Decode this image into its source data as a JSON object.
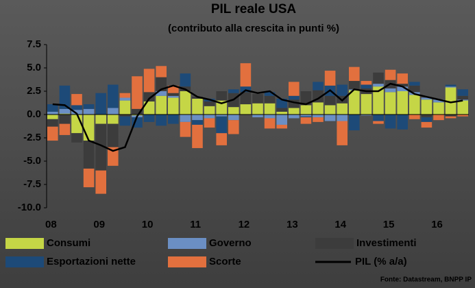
{
  "chart_data": {
    "type": "bar",
    "stacked": true,
    "title": "PIL reale USA",
    "subtitle": "(contributo alla crescita in punti %)",
    "categories": [
      "08",
      null,
      null,
      null,
      "09",
      null,
      null,
      null,
      "10",
      null,
      null,
      null,
      "11",
      null,
      null,
      null,
      "12",
      null,
      null,
      null,
      "13",
      null,
      null,
      null,
      "14",
      null,
      null,
      null,
      "15",
      null,
      null,
      null,
      "16",
      null,
      null
    ],
    "series": [
      {
        "name": "Consumi",
        "color": "#c5d646",
        "values": [
          -0.5,
          0.1,
          -2.0,
          -2.8,
          -1.0,
          -1.0,
          1.5,
          -0.1,
          1.4,
          2.0,
          1.8,
          2.5,
          1.7,
          0.9,
          1.5,
          0.8,
          1.1,
          1.2,
          1.2,
          0.3,
          0.7,
          1.0,
          1.3,
          1.0,
          1.2,
          2.6,
          2.2,
          3.0,
          2.4,
          2.5,
          2.1,
          1.6,
          1.3,
          2.9,
          1.5
        ]
      },
      {
        "name": "Governo",
        "color": "#6b8fc4",
        "values": [
          0.3,
          0.5,
          0.5,
          0.6,
          0.0,
          0.7,
          0.3,
          -0.2,
          0.0,
          0.5,
          0.2,
          -0.8,
          -0.6,
          -0.4,
          -0.2,
          -0.6,
          0.0,
          -0.3,
          -0.4,
          -1.1,
          -0.4,
          -0.2,
          -0.3,
          -0.7,
          -0.7,
          0.1,
          -0.1,
          0.3,
          0.4,
          0.5,
          0.3,
          0.2,
          0.3,
          0.1,
          0.1
        ]
      },
      {
        "name": "Investimenti",
        "color": "#3c3c3c",
        "values": [
          -0.8,
          -1.0,
          -1.0,
          -3.0,
          -5.0,
          -2.5,
          -0.2,
          0.6,
          1.0,
          1.5,
          0.3,
          0.5,
          0.2,
          0.5,
          1.0,
          1.5,
          1.3,
          1.0,
          0.8,
          0.4,
          0.9,
          1.5,
          1.3,
          1.0,
          0.8,
          0.9,
          0.6,
          1.2,
          0.9,
          0.3,
          0.7,
          -0.3,
          0.0,
          -0.2,
          0.4
        ]
      },
      {
        "name": "Esportazioni nette",
        "color": "#1d4a78",
        "values": [
          0.8,
          2.5,
          0.5,
          0.5,
          2.3,
          2.5,
          -1.0,
          -1.1,
          -0.8,
          -1.2,
          -1.0,
          1.4,
          -0.5,
          0.3,
          -1.8,
          0.4,
          0.6,
          0.0,
          0.4,
          1.0,
          0.4,
          -0.1,
          0.9,
          1.1,
          1.2,
          -1.7,
          0.4,
          -0.7,
          -1.5,
          -1.6,
          0.4,
          -0.5,
          0.0,
          0.2,
          0.7
        ]
      },
      {
        "name": "Scorte",
        "color": "#e2703e",
        "values": [
          -1.5,
          -1.2,
          1.2,
          -2.0,
          -2.5,
          -2.0,
          0.5,
          3.5,
          2.5,
          1.2,
          0.8,
          -1.6,
          -2.5,
          -1.0,
          -1.3,
          -1.5,
          2.5,
          0.0,
          -1.1,
          -0.4,
          1.5,
          -0.7,
          -0.5,
          1.6,
          -2.6,
          1.5,
          0.4,
          -0.3,
          1.1,
          1.1,
          -0.5,
          -0.6,
          -0.6,
          -0.2,
          -0.2
        ]
      }
    ],
    "line": {
      "name": "PIL (% a/a)",
      "color": "#000000",
      "values": [
        1.1,
        1.0,
        0.1,
        -2.8,
        -3.3,
        -3.9,
        -3.5,
        -0.2,
        1.7,
        2.7,
        3.1,
        2.7,
        1.9,
        1.6,
        1.2,
        1.6,
        2.6,
        2.3,
        2.5,
        1.6,
        1.3,
        1.1,
        1.7,
        2.6,
        1.5,
        2.7,
        2.5,
        2.5,
        3.3,
        3.0,
        2.2,
        1.9,
        1.6,
        1.3,
        1.5
      ]
    },
    "ylim": [
      -10,
      7.5
    ],
    "yticks": [
      7.5,
      {
        "value": 5,
        "label": "5.0"
      },
      2.5,
      {
        "value": 0,
        "label": "0.0"
      },
      -2.5,
      {
        "value": -5,
        "label": "-5.0"
      },
      -7.5,
      {
        "value": -10,
        "label": "-10.0"
      }
    ],
    "source": "Fonte: Datastream, BNPP IP"
  }
}
